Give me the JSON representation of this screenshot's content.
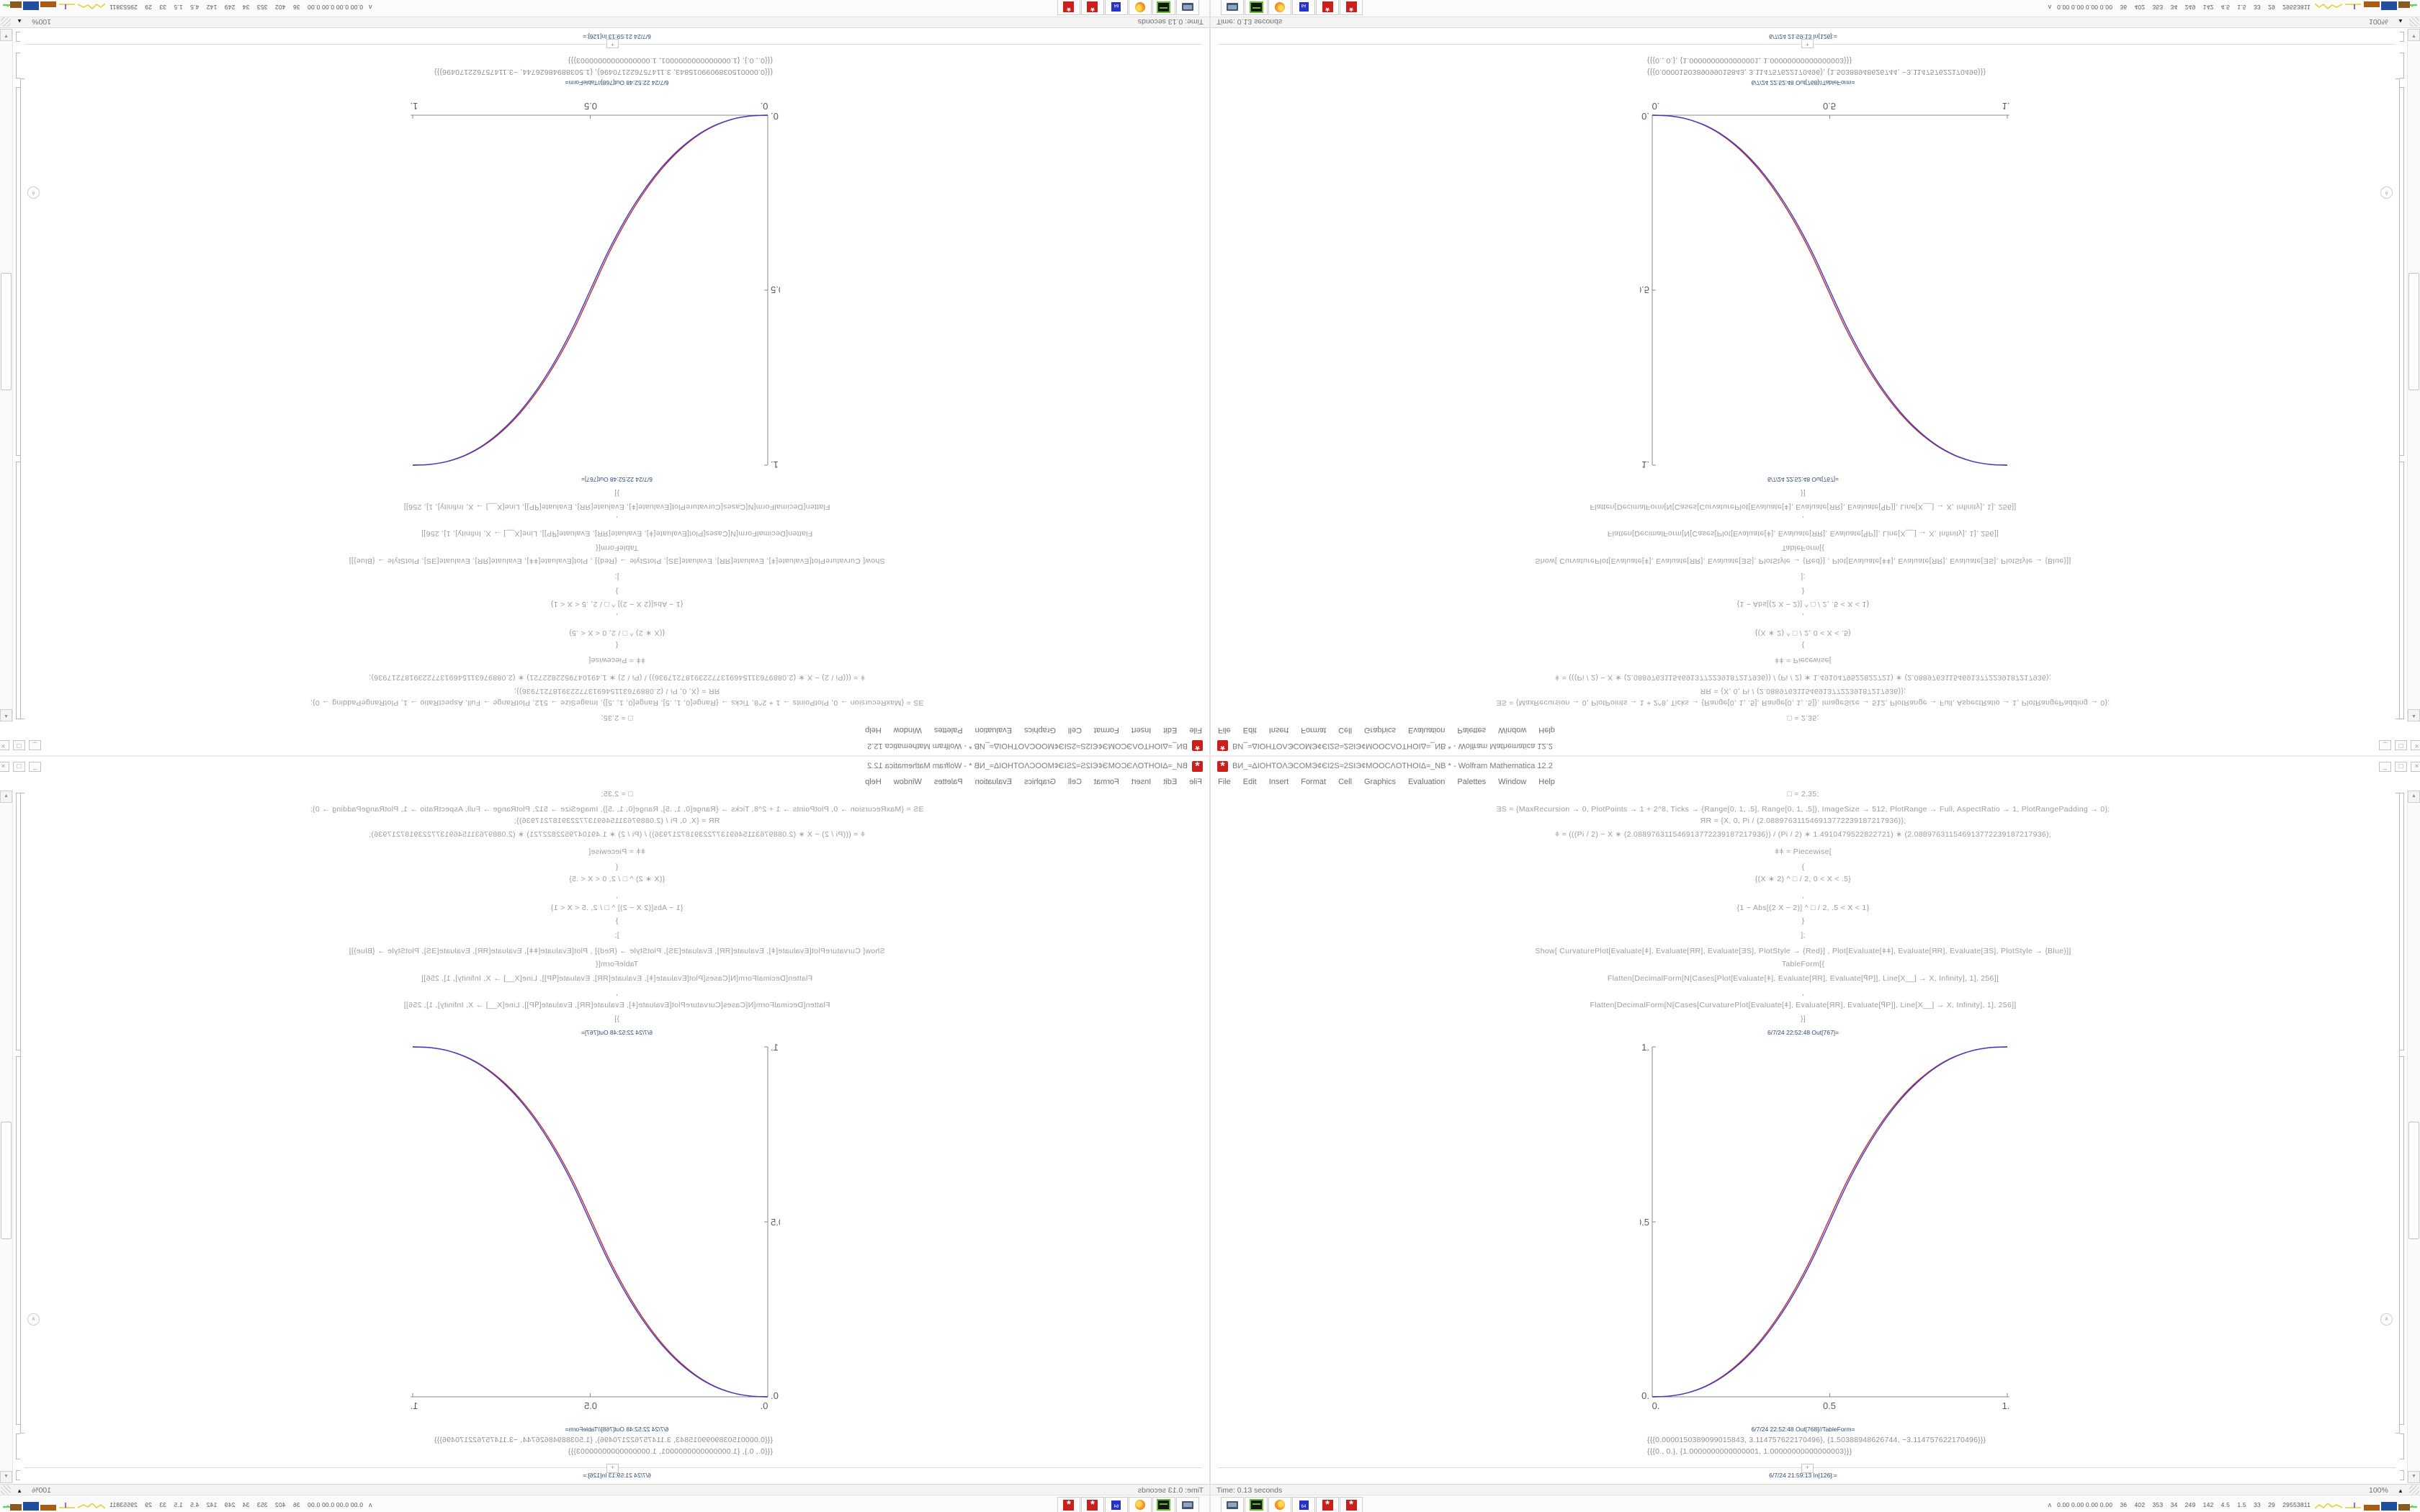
{
  "window": {
    "title": "ВИ_≈ΔIOHTOΛЭCOMЭ¢ЄI2Ѕ≈2ЅIЭ¢MOOCΛOTHOIΔ≈_NB * - Wolfram Mathematica 12.2",
    "app_icon": "mathematica-red-gear",
    "app_icon_glyph": "*",
    "controls": {
      "minimize": "_",
      "maximize": "□",
      "close": "×"
    },
    "menu": [
      "File",
      "Edit",
      "Insert",
      "Format",
      "Cell",
      "Graphics",
      "Evaluation",
      "Palettes",
      "Window",
      "Help"
    ]
  },
  "notebook": {
    "code_lines": [
      "□ = 2.35;",
      "ƎЅ = {MaxRecursion → 0, PlotPoints → 1 + 2^8, Ticks → {Range[0, 1, .5], Range[0, 1, .5]}, ImageSize → 512, PlotRange → Full, AspectRatio → 1, PlotRangePadding → 0};",
      "ЯR = {X, 0, Pi / (2.088976311546913772239187217936)};",
      "ǂ = (((Pi / 2) − X ∗ (2.088976311546913772239187217936)) / (Pi / 2) ∗ 1.4910479522822721) ∗ (2.088976311546913772239187217936);",
      "ǂǂ = Piecewise[",
      "{",
      "{(X ∗ 2) ^ □ / 2, 0 < X < .5}",
      ",",
      "{1 − Abs[(2 X − 2)] ^ □ / 2, .5 < X < 1}",
      "}",
      "];",
      "Show[  CurvaturePlot[Evaluate[ǂ], Evaluate[ЯR], Evaluate[ƎЅ], PlotStyle → {Red}]  ,  Plot[Evaluate[ǂǂ], Evaluate[ЯR], Evaluate[ƎЅ], PlotStyle → {Blue}]]",
      "TableForm[{",
      "Flatten[DecimalForm[N[Cases[Plot[Evaluate[ǂ], Evaluate[ЯR], Evaluate[ꟼP]], Line[X__] → X, Infinity], 1], 256]]",
      ",",
      "Flatten[DecimalForm[N[Cases[CurvaturePlot[Evaluate[ǂ], Evaluate[ЯR], Evaluate[ꟼP]], Line[X__] → X, Infinity], 1], 256]]",
      "}]"
    ],
    "out_plot_label": "6/7/24 22:52:48 Out[767]=",
    "out_table_label": "6/7/24 22:52:48 Out[768]//TableForm=",
    "table_rows": [
      "{{{0.0000150389099015843, 3.114757622170496}, {1.50388948626744, −3.114757622170496}}}",
      "{{{0., 0.}, {1.0000000000000001, 1.00000000000000003}}}"
    ],
    "insert_plus": "+",
    "in_label": "6/7/24 21:59:13 In[126]:="
  },
  "chart_data": {
    "type": "line",
    "title": "",
    "xlabel": "",
    "ylabel": "",
    "xlim": [
      0,
      1
    ],
    "ylim": [
      0,
      1
    ],
    "grid": false,
    "legend_position": "none",
    "xticks": [
      "0.",
      "0.5",
      "1."
    ],
    "yticks": [
      "0.",
      "0.5",
      "1."
    ],
    "function": "y = (2x)^2.35 / 2 for 0<x<0.5 ; y = 1 - Abs[2x-2]^2.35 / 2 for 0.5<x<1",
    "x": [
      0,
      0.05,
      0.1,
      0.15,
      0.2,
      0.25,
      0.3,
      0.35,
      0.4,
      0.45,
      0.5,
      0.55,
      0.6,
      0.65,
      0.7,
      0.75,
      0.8,
      0.85,
      0.9,
      0.95,
      1
    ],
    "series": [
      {
        "name": "CurvaturePlot (Red)",
        "color": "#c03028",
        "values": [
          0,
          0.0022,
          0.0114,
          0.0295,
          0.058,
          0.0981,
          0.1505,
          0.2162,
          0.296,
          0.3903,
          0.5,
          0.6097,
          0.704,
          0.7838,
          0.8495,
          0.9019,
          0.942,
          0.9705,
          0.9886,
          0.9978,
          1
        ]
      },
      {
        "name": "Plot ǂǂ Piecewise (Blue)",
        "color": "#3c3ccf",
        "values": [
          0,
          0.0022,
          0.0114,
          0.0295,
          0.058,
          0.0981,
          0.1505,
          0.2162,
          0.296,
          0.3903,
          0.5,
          0.6097,
          0.704,
          0.7838,
          0.8495,
          0.9019,
          0.942,
          0.9705,
          0.9886,
          0.9978,
          1
        ]
      }
    ]
  },
  "status_bar": {
    "time_text": "Time: 0.13 seconds",
    "zoom_level": "100%",
    "zoom_arrow": "▲"
  },
  "scrollbar": {
    "up_arrow": "▲",
    "down_arrow": "▼",
    "assist_glyph": "ʌ"
  },
  "taskbar": {
    "buttons": [
      "system-monitor",
      "disk-utility",
      "firefox",
      "floppy-64",
      "mathematica-kernel",
      "mathematica-frontend"
    ],
    "floppy_label": "64",
    "gear_glyph": "*",
    "tray_expander": "ʌ",
    "tray_numbers": "0.00 0.00 0.00 0.00    36    402    353    34    249    142    4.5    1.5    33    29    29553811"
  },
  "colors": {
    "red_curve": "#c03028",
    "blue_curve": "#3c3ccf",
    "accent_red": "#c9201d",
    "cell_label_navy": "#2c4a7c",
    "code_gray": "#9c9c9c"
  },
  "composition": {
    "note": "2x2 kaleidoscope of one 1680x1050 screenshot",
    "quadrants": [
      "rotated-180",
      "flipped-vertical",
      "flipped-horizontal",
      "original"
    ]
  }
}
